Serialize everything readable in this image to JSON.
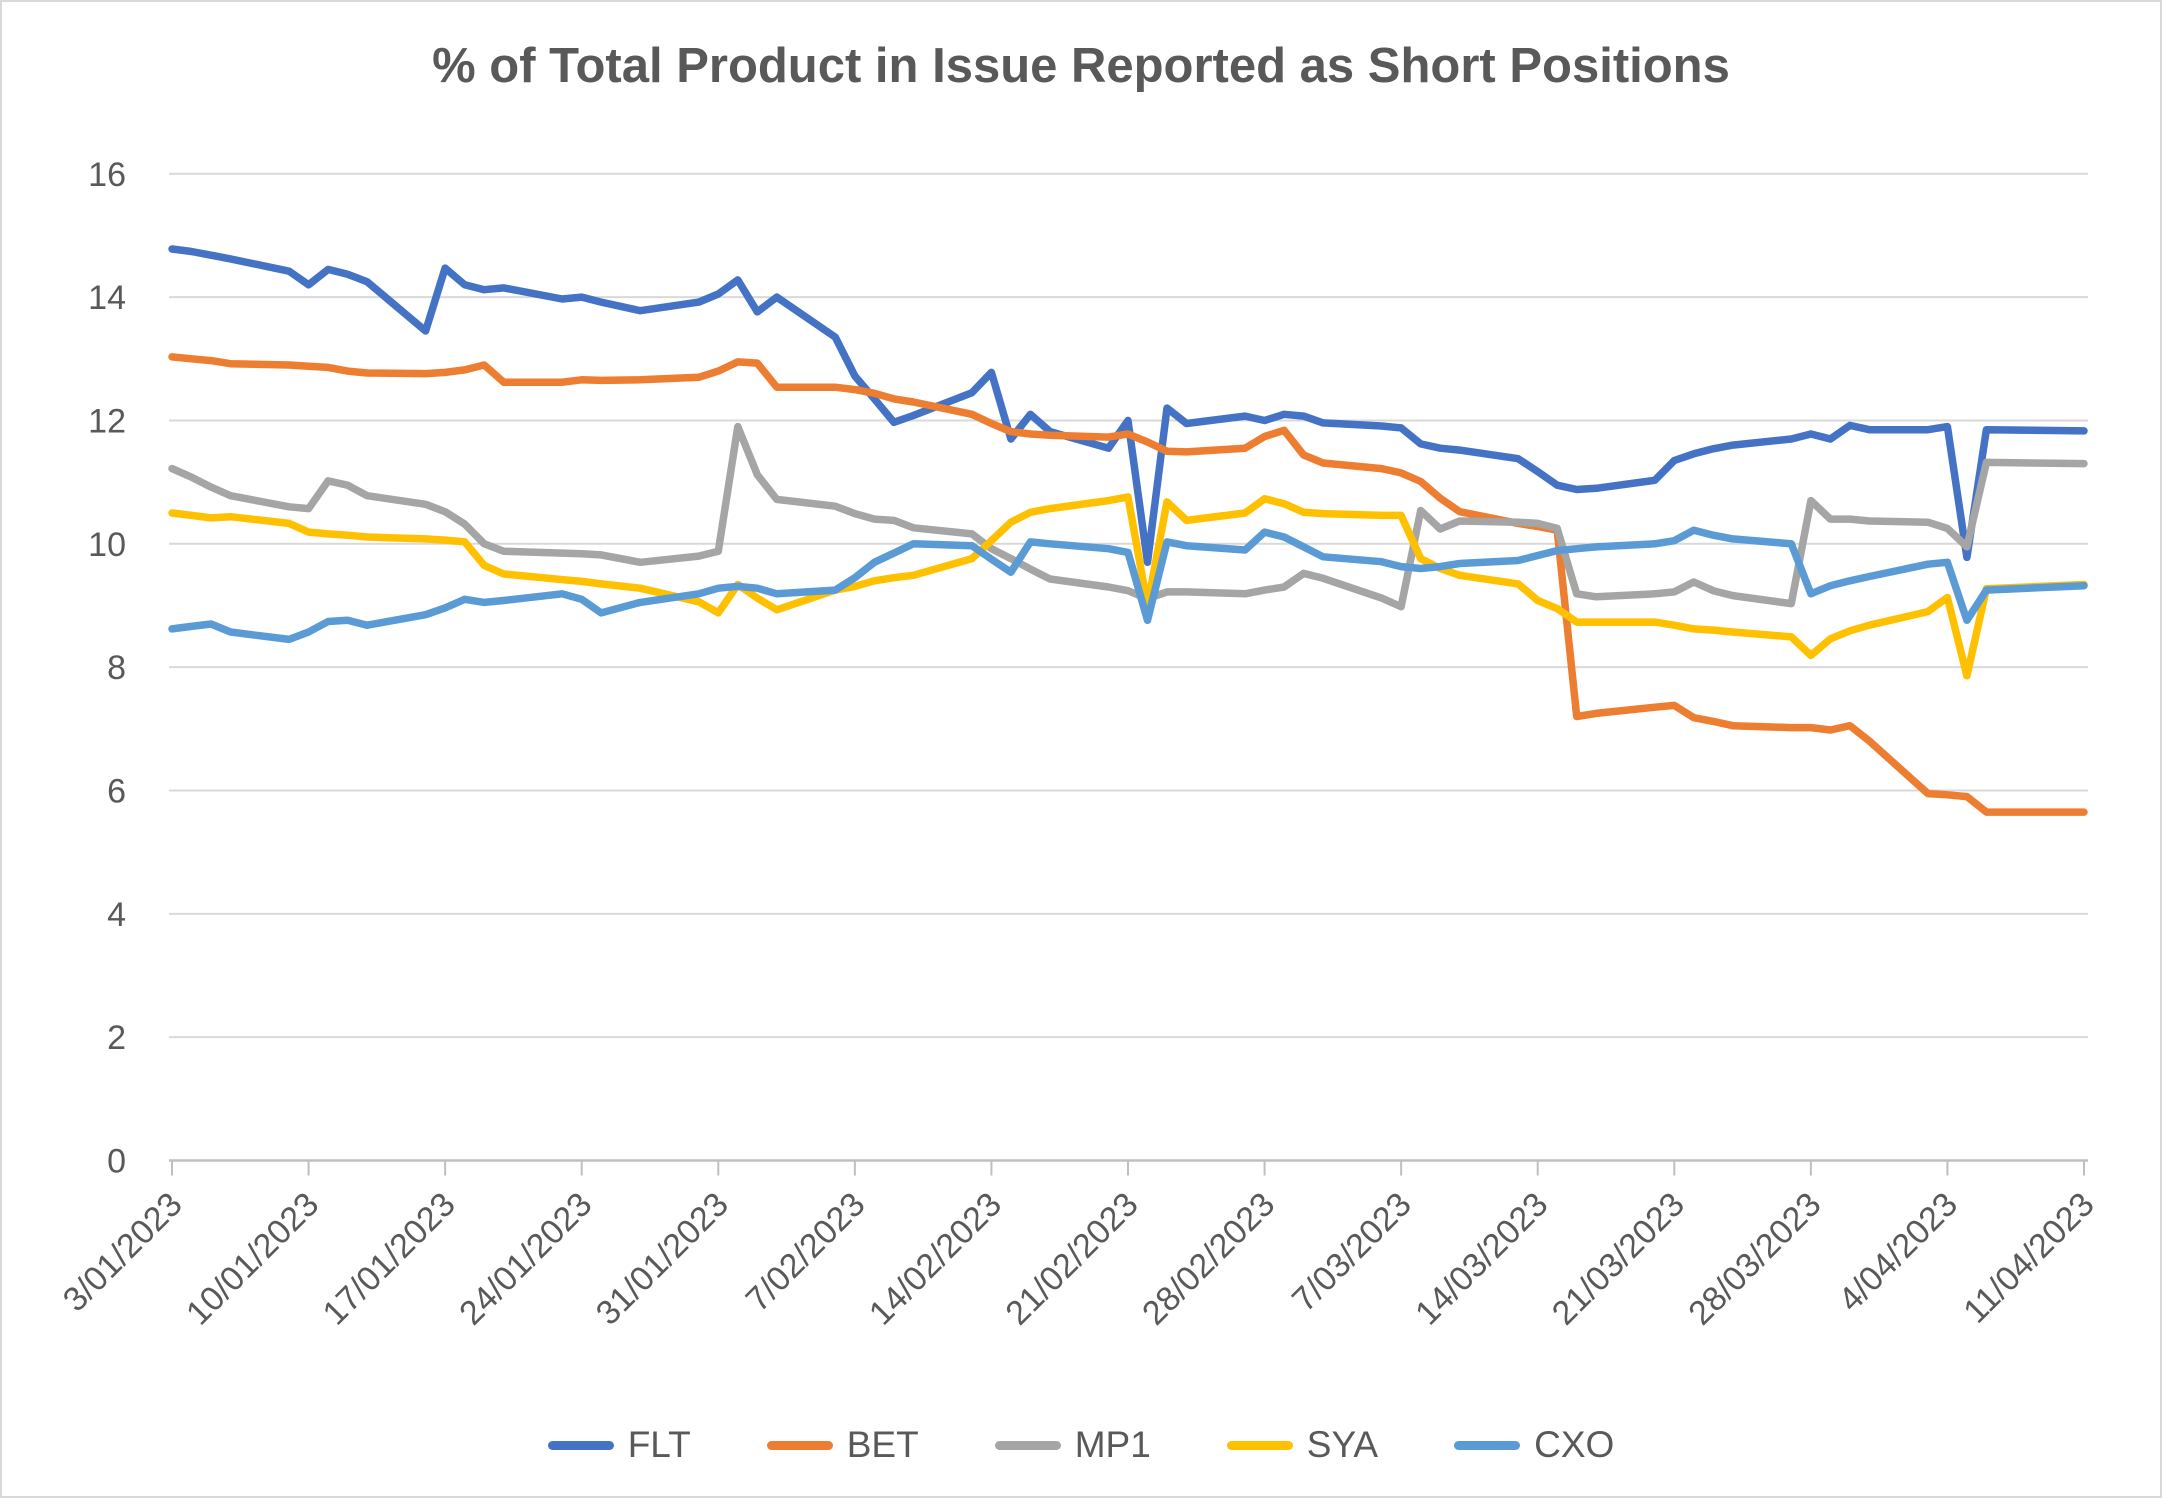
{
  "title": {
    "text": "% of Total Product in Issue Reported as Short Positions",
    "color": "#595959"
  },
  "frame": {
    "background": "#ffffff",
    "border_color": "#d9d9d9"
  },
  "chart_data": {
    "type": "line",
    "title": "% of Total Product in Issue Reported as Short Positions",
    "xlabel": "",
    "ylabel": "",
    "ylim": [
      0,
      16
    ],
    "y_ticks": [
      0,
      2,
      4,
      6,
      8,
      10,
      12,
      14,
      16
    ],
    "grid": "horizontal-only",
    "gridline_color": "#d9d9d9",
    "axis_color": "#bfbfbf",
    "label_color": "#595959",
    "legend_position": "bottom",
    "x_tick_labels": [
      "3/01/2023",
      "10/01/2023",
      "17/01/2023",
      "24/01/2023",
      "31/01/2023",
      "7/02/2023",
      "14/02/2023",
      "21/02/2023",
      "28/02/2023",
      "7/03/2023",
      "14/03/2023",
      "21/03/2023",
      "28/03/2023",
      "4/04/2023",
      "11/04/2023"
    ],
    "x_dates": [
      "3/01/2023",
      "4/01/2023",
      "5/01/2023",
      "6/01/2023",
      "9/01/2023",
      "10/01/2023",
      "11/01/2023",
      "12/01/2023",
      "13/01/2023",
      "16/01/2023",
      "17/01/2023",
      "18/01/2023",
      "19/01/2023",
      "20/01/2023",
      "23/01/2023",
      "24/01/2023",
      "25/01/2023",
      "27/01/2023",
      "30/01/2023",
      "31/01/2023",
      "1/02/2023",
      "2/02/2023",
      "3/02/2023",
      "6/02/2023",
      "7/02/2023",
      "8/02/2023",
      "9/02/2023",
      "10/02/2023",
      "13/02/2023",
      "14/02/2023",
      "15/02/2023",
      "16/02/2023",
      "17/02/2023",
      "20/02/2023",
      "21/02/2023",
      "22/02/2023",
      "23/02/2023",
      "24/02/2023",
      "27/02/2023",
      "28/02/2023",
      "1/03/2023",
      "2/03/2023",
      "3/03/2023",
      "6/03/2023",
      "7/03/2023",
      "8/03/2023",
      "9/03/2023",
      "10/03/2023",
      "13/03/2023",
      "14/03/2023",
      "15/03/2023",
      "16/03/2023",
      "17/03/2023",
      "20/03/2023",
      "21/03/2023",
      "22/03/2023",
      "23/03/2023",
      "24/03/2023",
      "27/03/2023",
      "28/03/2023",
      "29/03/2023",
      "30/03/2023",
      "31/03/2023",
      "3/04/2023",
      "4/04/2023",
      "5/04/2023",
      "6/04/2023",
      "11/04/2023"
    ],
    "series": [
      {
        "name": "FLT",
        "color": "#4472C4",
        "values": [
          14.78,
          14.74,
          14.68,
          14.62,
          14.42,
          14.2,
          14.45,
          14.37,
          14.25,
          13.45,
          14.47,
          14.2,
          14.12,
          14.15,
          13.97,
          14.0,
          13.92,
          13.78,
          13.92,
          14.05,
          14.28,
          13.76,
          14.0,
          13.35,
          12.72,
          12.35,
          11.97,
          12.08,
          12.45,
          12.78,
          11.7,
          12.1,
          11.82,
          11.55,
          12.0,
          9.7,
          12.2,
          11.95,
          12.07,
          12.0,
          12.1,
          12.07,
          11.96,
          11.91,
          11.88,
          11.62,
          11.55,
          11.52,
          11.38,
          11.17,
          10.95,
          10.88,
          10.9,
          11.03,
          11.35,
          11.46,
          11.54,
          11.6,
          11.7,
          11.78,
          11.7,
          11.92,
          11.85,
          11.85,
          11.9,
          9.78,
          11.85,
          11.83
        ]
      },
      {
        "name": "BET",
        "color": "#ED7D31",
        "values": [
          13.03,
          13.0,
          12.97,
          12.92,
          12.9,
          12.88,
          12.86,
          12.8,
          12.77,
          12.76,
          12.78,
          12.82,
          12.9,
          12.62,
          12.62,
          12.66,
          12.65,
          12.66,
          12.7,
          12.8,
          12.95,
          12.93,
          12.54,
          12.54,
          12.5,
          12.44,
          12.35,
          12.3,
          12.1,
          11.95,
          11.82,
          11.78,
          11.76,
          11.73,
          11.78,
          11.65,
          11.5,
          11.49,
          11.55,
          11.74,
          11.84,
          11.44,
          11.31,
          11.22,
          11.15,
          11.01,
          10.74,
          10.52,
          10.33,
          10.28,
          10.22,
          7.2,
          7.25,
          7.35,
          7.38,
          7.18,
          7.12,
          7.05,
          7.02,
          7.02,
          6.98,
          7.05,
          6.8,
          5.95,
          5.93,
          5.9,
          5.65,
          5.65
        ]
      },
      {
        "name": "MP1",
        "color": "#A5A5A5",
        "values": [
          11.22,
          11.08,
          10.92,
          10.78,
          10.6,
          10.57,
          11.02,
          10.95,
          10.78,
          10.64,
          10.52,
          10.32,
          10.0,
          9.88,
          9.85,
          9.84,
          9.82,
          9.7,
          9.8,
          9.88,
          11.9,
          11.12,
          10.72,
          10.61,
          10.49,
          10.4,
          10.38,
          10.26,
          10.16,
          9.92,
          9.76,
          9.59,
          9.43,
          9.3,
          9.24,
          9.11,
          9.22,
          9.22,
          9.19,
          9.25,
          9.3,
          9.52,
          9.44,
          9.12,
          8.98,
          10.54,
          10.24,
          10.37,
          10.35,
          10.33,
          10.25,
          9.19,
          9.14,
          9.19,
          9.22,
          9.38,
          9.24,
          9.16,
          9.03,
          10.7,
          10.4,
          10.4,
          10.37,
          10.35,
          10.25,
          9.95,
          11.32,
          11.3
        ]
      },
      {
        "name": "SYA",
        "color": "#FFC000",
        "values": [
          10.5,
          10.46,
          10.42,
          10.44,
          10.33,
          10.19,
          10.16,
          10.14,
          10.11,
          10.08,
          10.06,
          10.03,
          9.65,
          9.51,
          9.42,
          9.39,
          9.35,
          9.28,
          9.06,
          8.88,
          9.34,
          9.12,
          8.93,
          9.25,
          9.31,
          9.4,
          9.45,
          9.49,
          9.76,
          10.05,
          10.35,
          10.51,
          10.57,
          10.7,
          10.76,
          9.0,
          10.68,
          10.38,
          10.5,
          10.73,
          10.65,
          10.51,
          10.49,
          10.46,
          10.46,
          9.76,
          9.6,
          9.49,
          9.35,
          9.08,
          8.95,
          8.73,
          8.73,
          8.73,
          8.68,
          8.62,
          8.6,
          8.57,
          8.49,
          8.19,
          8.46,
          8.59,
          8.68,
          8.9,
          9.13,
          7.86,
          9.27,
          9.34
        ]
      },
      {
        "name": "CXO",
        "color": "#5B9BD5",
        "values": [
          8.62,
          8.66,
          8.7,
          8.57,
          8.45,
          8.57,
          8.74,
          8.76,
          8.68,
          8.85,
          8.96,
          9.1,
          9.05,
          9.08,
          9.19,
          9.1,
          8.88,
          9.05,
          9.19,
          9.28,
          9.31,
          9.28,
          9.19,
          9.25,
          9.45,
          9.7,
          9.85,
          10.0,
          9.97,
          9.75,
          9.54,
          10.03,
          10.0,
          9.92,
          9.86,
          8.76,
          10.03,
          9.97,
          9.9,
          10.19,
          10.11,
          9.95,
          9.79,
          9.71,
          9.63,
          9.6,
          9.63,
          9.68,
          9.73,
          9.81,
          9.89,
          9.92,
          9.95,
          10.0,
          10.05,
          10.22,
          10.14,
          10.08,
          10.0,
          9.19,
          9.32,
          9.4,
          9.47,
          9.67,
          9.7,
          8.76,
          9.25,
          9.32
        ]
      }
    ]
  }
}
